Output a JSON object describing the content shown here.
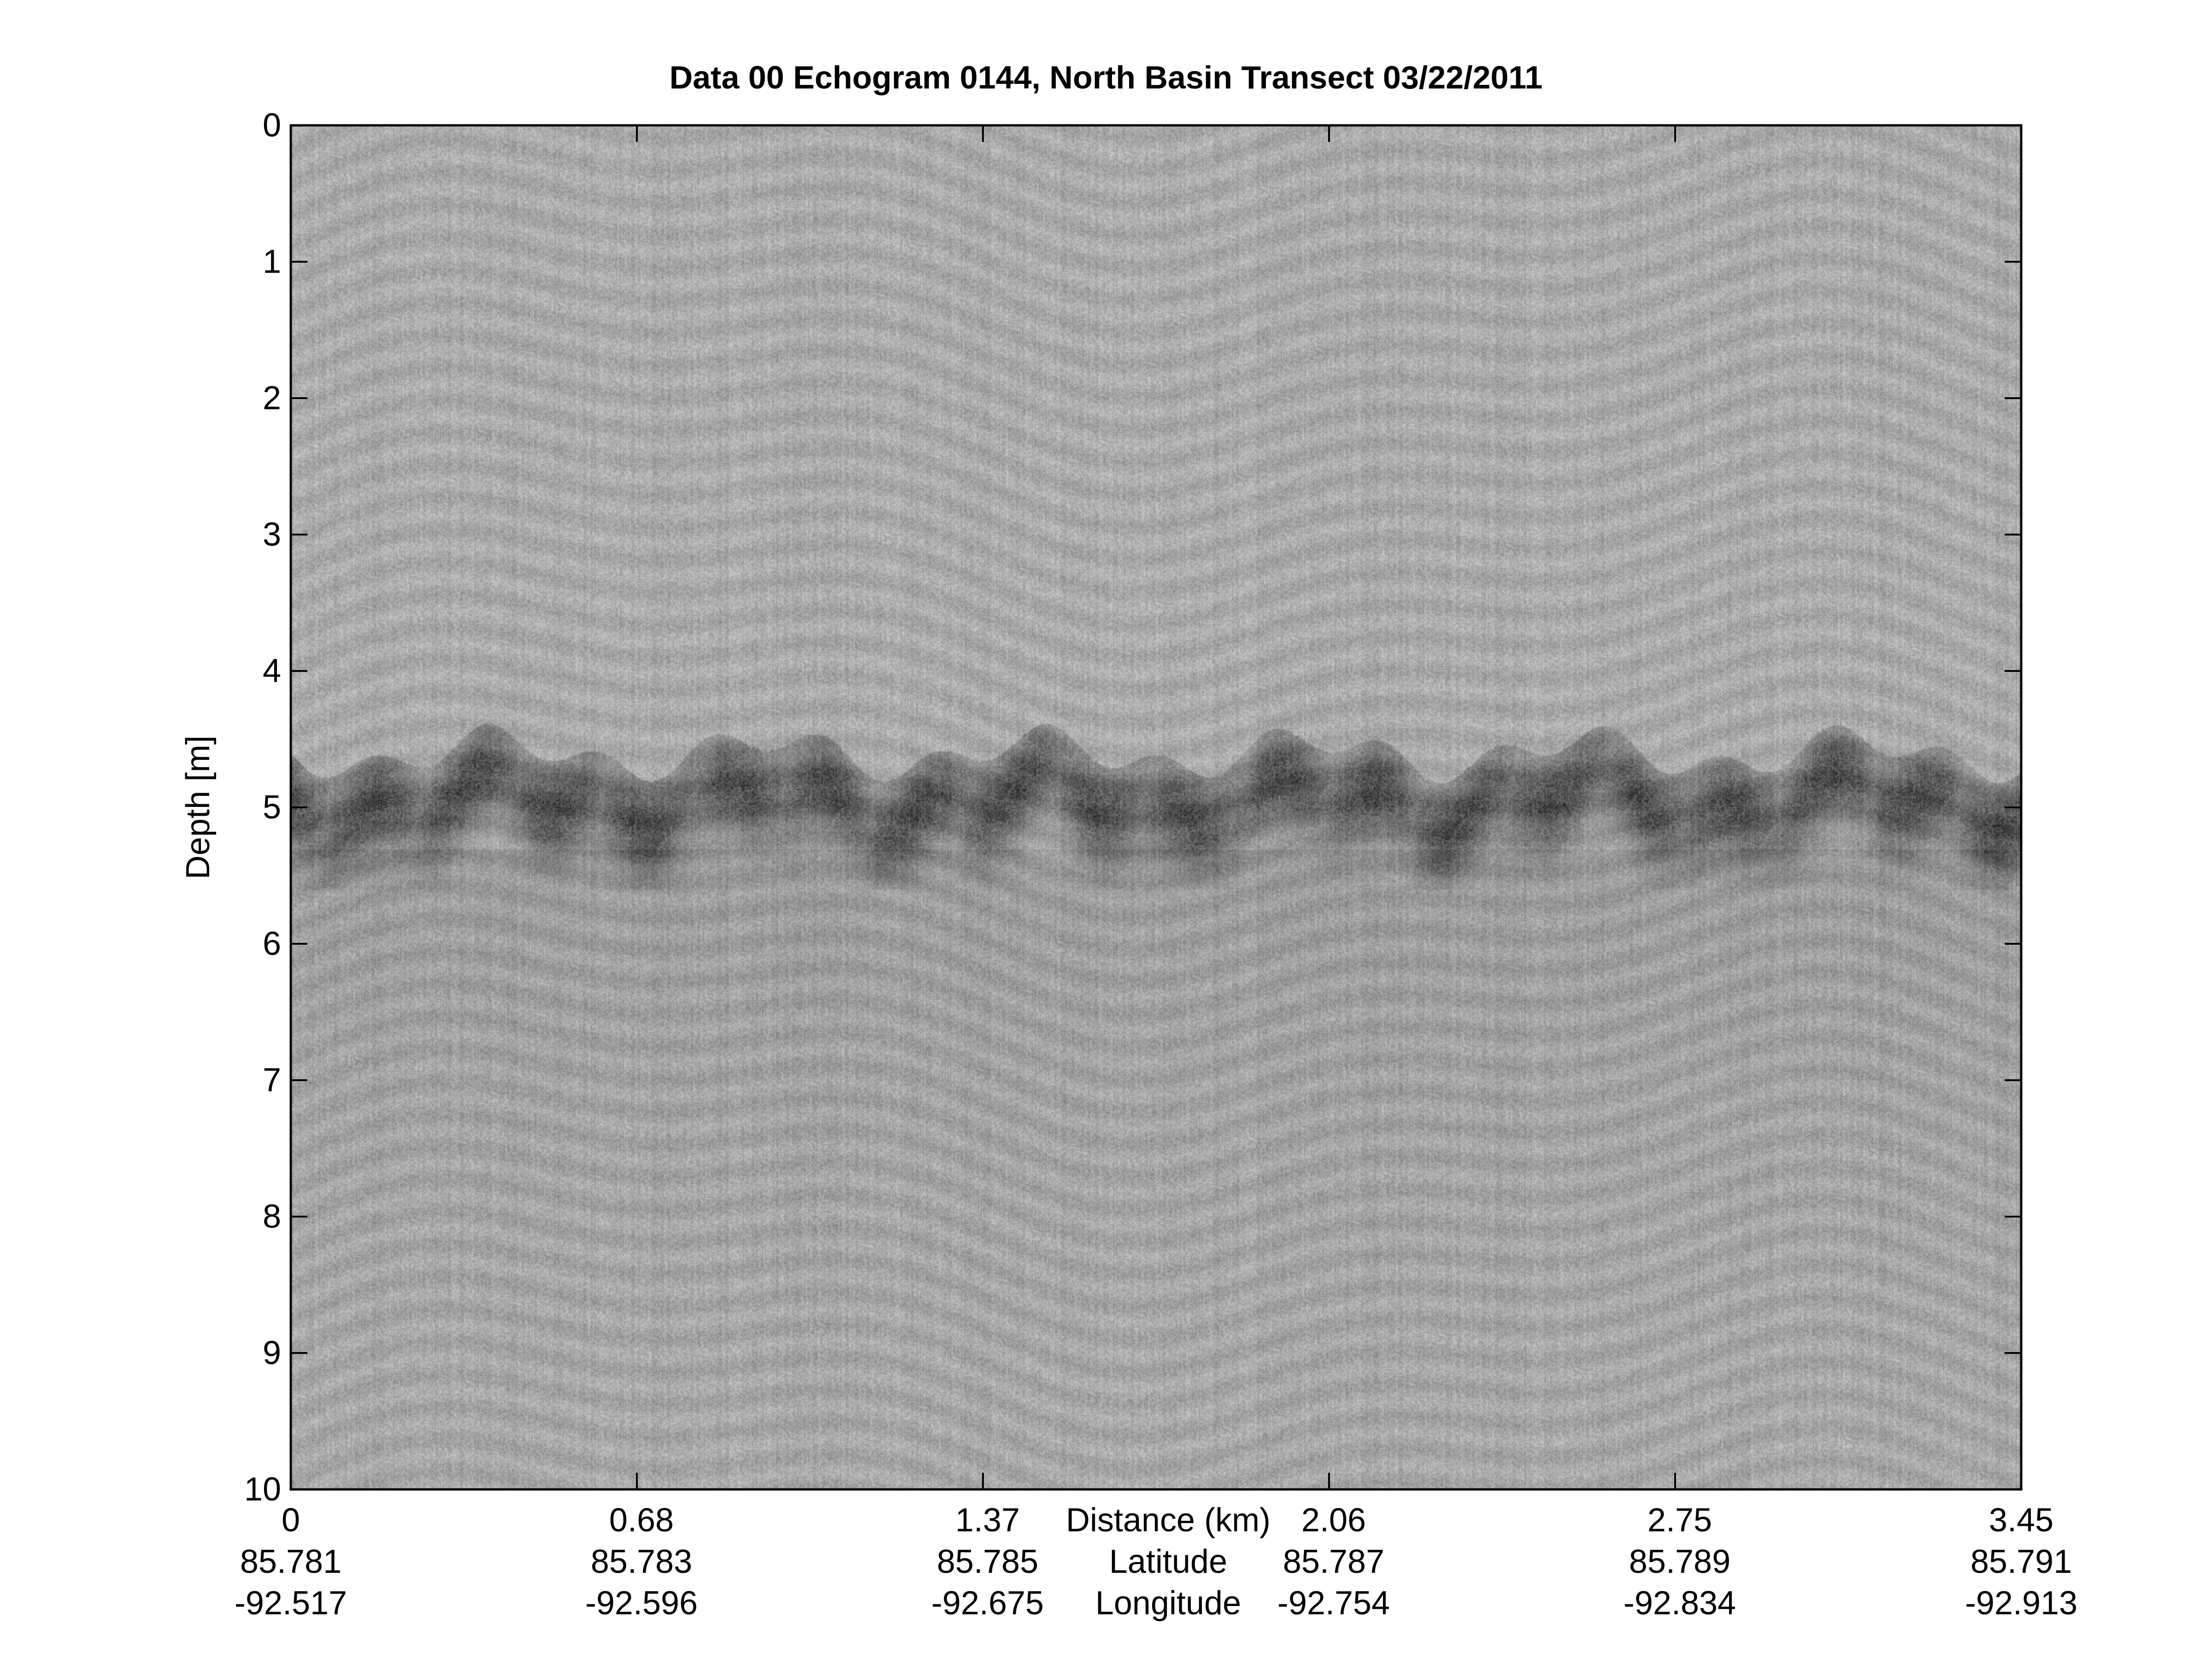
{
  "chart_data": {
    "type": "heatmap",
    "title": "Data 00 Echogram 0144, North Basin Transect 03/22/2011",
    "ylabel": "Depth [m]",
    "ylim": [
      0,
      10
    ],
    "y_reversed": true,
    "yticks": [
      "0",
      "1",
      "2",
      "3",
      "4",
      "5",
      "6",
      "7",
      "8",
      "9",
      "10"
    ],
    "xlabel": "Distance (km)",
    "xlim": [
      0,
      3.45
    ],
    "xticks": [
      "0",
      "0.68",
      "1.37",
      "2.06",
      "2.75",
      "3.45"
    ],
    "secondary_x_rows": [
      {
        "label": "Latitude",
        "ticks": [
          "85.781",
          "85.783",
          "85.785",
          "85.787",
          "85.789",
          "85.791"
        ]
      },
      {
        "label": "Longitude",
        "ticks": [
          "-92.517",
          "-92.596",
          "-92.675",
          "-92.754",
          "-92.834",
          "-92.913"
        ]
      }
    ],
    "colormap": "gray",
    "strong_return_depth_m": [
      4.6,
      5.6
    ],
    "grid": false
  }
}
